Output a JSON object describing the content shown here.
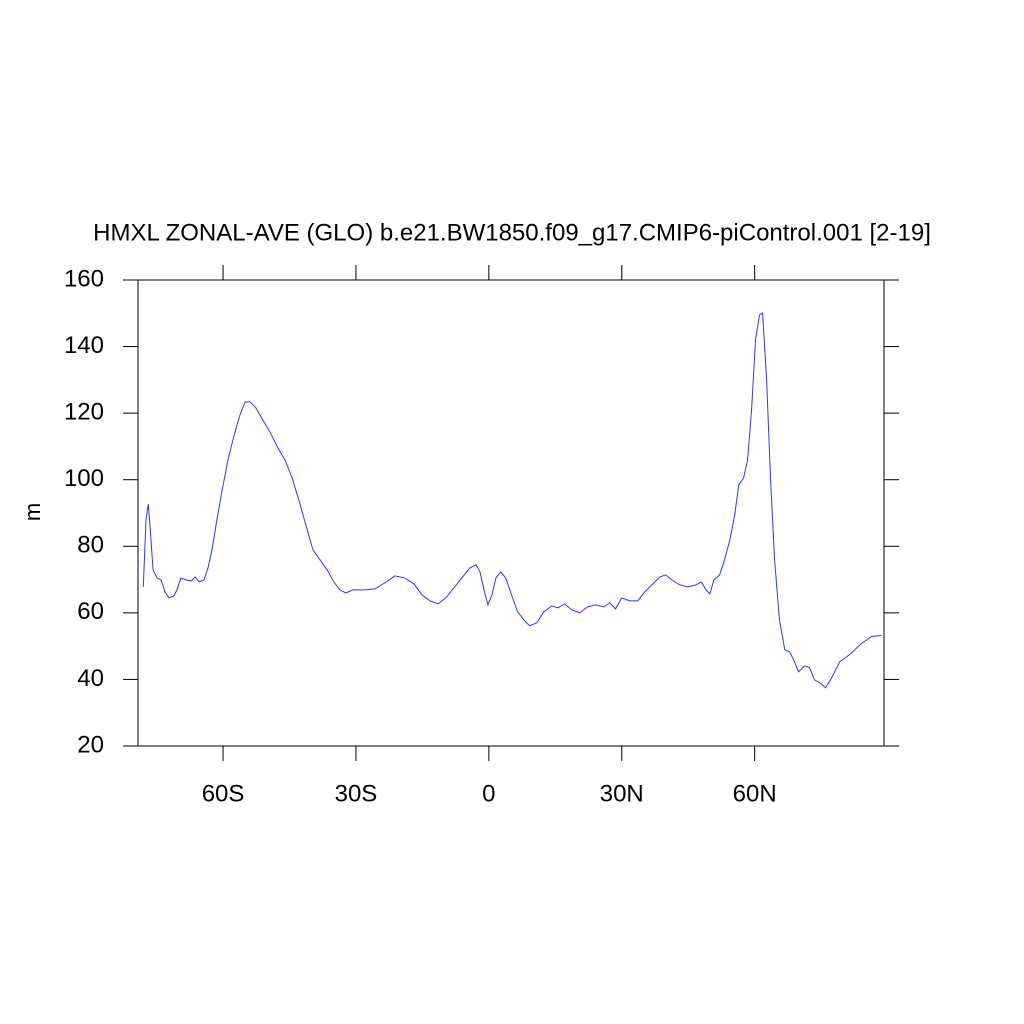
{
  "chart_data": {
    "type": "line",
    "title": "HMXL ZONAL-AVE (GLO) b.e21.BW1850.f09_g17.CMIP6-piControl.001 [2-19]",
    "y_label": "m",
    "x": [
      -78.0,
      -77.4,
      -76.9,
      -76.5,
      -75.8,
      -74.9,
      -74.0,
      -73.1,
      -72.2,
      -71.1,
      -70.4,
      -69.5,
      -68.4,
      -67.2,
      -66.3,
      -65.4,
      -64.3,
      -63.4,
      -62.5,
      -61.4,
      -60.2,
      -58.9,
      -57.5,
      -56.2,
      -55.0,
      -53.9,
      -52.6,
      -51.0,
      -49.4,
      -47.6,
      -46.0,
      -44.4,
      -42.9,
      -41.3,
      -39.7,
      -38.1,
      -36.5,
      -35.0,
      -33.6,
      -32.3,
      -30.7,
      -28.0,
      -25.7,
      -23.5,
      -21.2,
      -19.0,
      -16.9,
      -15.1,
      -13.3,
      -11.5,
      -9.7,
      -7.9,
      -6.1,
      -4.3,
      -2.9,
      -2.0,
      -1.1,
      -0.2,
      0.7,
      1.6,
      2.7,
      3.8,
      5.2,
      6.5,
      7.9,
      9.2,
      10.8,
      12.4,
      14.2,
      15.6,
      17.1,
      18.7,
      20.5,
      22.3,
      24.1,
      25.9,
      27.3,
      28.6,
      30.0,
      31.8,
      33.6,
      35.2,
      36.8,
      38.6,
      39.9,
      41.3,
      43.1,
      44.9,
      46.7,
      48.0,
      49.0,
      49.9,
      50.8,
      52.1,
      53.2,
      54.4,
      55.5,
      56.4,
      57.5,
      58.4,
      59.3,
      60.2,
      61.1,
      61.8,
      62.7,
      63.6,
      64.5,
      65.6,
      66.8,
      67.9,
      69.0,
      69.9,
      71.3,
      72.4,
      73.5,
      74.7,
      76.0,
      77.4,
      79.2,
      81.4,
      84.1,
      86.4,
      88.6
    ],
    "series": [
      {
        "name": "HMXL",
        "color": "#3333ff",
        "values": [
          67.8,
          88,
          92.7,
          86.4,
          72.9,
          70.5,
          69.9,
          66.3,
          64.5,
          65.1,
          66.9,
          70.5,
          69.9,
          69.6,
          70.8,
          69.3,
          69.9,
          73.5,
          78.9,
          87.9,
          96.9,
          105.9,
          113.4,
          119.4,
          123.4,
          123.4,
          121.6,
          117.9,
          114.3,
          109.5,
          105.9,
          100.5,
          93.9,
          86.4,
          78.9,
          75.9,
          72.9,
          69.3,
          66.9,
          66.0,
          66.9,
          66.9,
          67.2,
          69.0,
          71.1,
          70.5,
          68.7,
          65.4,
          63.6,
          62.7,
          64.5,
          67.5,
          70.5,
          73.5,
          74.4,
          72.3,
          66.9,
          62.4,
          65.4,
          70.5,
          72.3,
          70.5,
          65.1,
          60.3,
          57.9,
          56.1,
          57.0,
          60.3,
          62.1,
          61.5,
          62.7,
          60.9,
          60.0,
          61.8,
          62.4,
          61.8,
          63.0,
          61.2,
          64.5,
          63.6,
          63.6,
          66.3,
          68.4,
          70.8,
          71.4,
          69.9,
          68.4,
          67.8,
          68.4,
          69.3,
          66.9,
          65.7,
          69.9,
          71.4,
          75.9,
          81.9,
          89.4,
          98.4,
          100.5,
          105.9,
          120.9,
          142,
          149.5,
          150.1,
          130,
          100,
          75.9,
          57.9,
          48.9,
          48.3,
          45.3,
          42.3,
          44.1,
          43.5,
          39.9,
          39.0,
          37.5,
          40.5,
          45.3,
          47.4,
          50.8,
          52.9,
          53.2
        ]
      }
    ],
    "xlim": [
      -79.2,
      89.2
    ],
    "xticks": [
      {
        "value": -60,
        "label": "60S"
      },
      {
        "value": -30,
        "label": "30S"
      },
      0,
      {
        "value": 30,
        "label": "30N"
      },
      {
        "value": 60,
        "label": "60N"
      }
    ],
    "ylim": [
      20,
      160
    ],
    "yticks": [
      20,
      40,
      60,
      80,
      100,
      120,
      140,
      160
    ]
  }
}
